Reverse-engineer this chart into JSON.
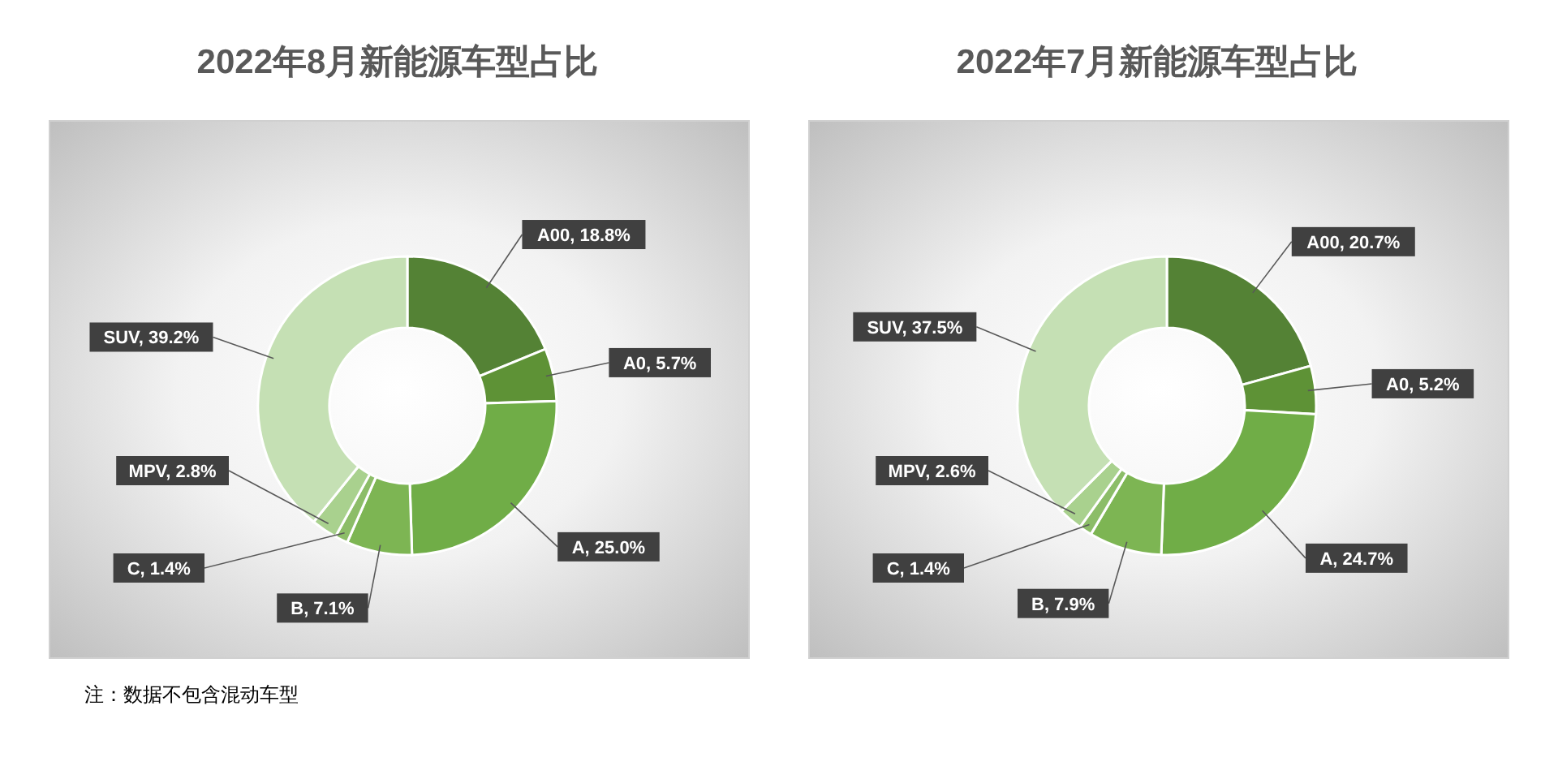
{
  "chart_data": [
    {
      "type": "donut",
      "title": "2022年8月新能源车型占比",
      "categories": [
        "A00",
        "A0",
        "A",
        "B",
        "C",
        "MPV",
        "SUV"
      ],
      "values": [
        18.8,
        5.7,
        25.0,
        7.1,
        1.4,
        2.8,
        39.2
      ],
      "value_labels": [
        "18.8%",
        "5.7%",
        "25.0%",
        "7.1%",
        "1.4%",
        "2.8%",
        "39.2%"
      ],
      "colors": [
        "#548235",
        "#5e9236",
        "#70ad47",
        "#7db553",
        "#8cbd68",
        "#a9d18e",
        "#c5e0b4"
      ],
      "legend": false,
      "annotations": [
        "注：数据不包含混动车型"
      ]
    },
    {
      "type": "donut",
      "title": "2022年7月新能源车型占比",
      "categories": [
        "A00",
        "A0",
        "A",
        "B",
        "C",
        "MPV",
        "SUV"
      ],
      "values": [
        20.7,
        5.2,
        24.7,
        7.9,
        1.4,
        2.6,
        37.5
      ],
      "value_labels": [
        "20.7%",
        "5.2%",
        "24.7%",
        "7.9%",
        "1.4%",
        "2.6%",
        "37.5%"
      ],
      "colors": [
        "#548235",
        "#5e9236",
        "#70ad47",
        "#7db553",
        "#8cbd68",
        "#a9d18e",
        "#c5e0b4"
      ],
      "legend": false
    }
  ]
}
